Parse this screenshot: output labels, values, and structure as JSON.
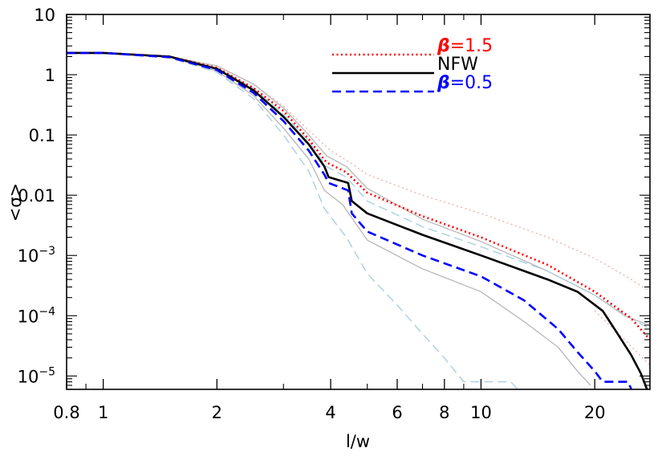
{
  "chart_data": {
    "type": "line",
    "xlabel": "l/w",
    "ylabel": "<σ>",
    "x_scale": "log",
    "y_scale": "log",
    "xlim": [
      0.8,
      28
    ],
    "ylim": [
      6e-06,
      10
    ],
    "grid": false,
    "legend_position": "top-right",
    "x_ticks": [
      {
        "value": 0.8,
        "label": "0.8"
      },
      {
        "value": 1,
        "label": "1"
      },
      {
        "value": 2,
        "label": "2"
      },
      {
        "value": 4,
        "label": "4"
      },
      {
        "value": 6,
        "label": "6"
      },
      {
        "value": 8,
        "label": "8"
      },
      {
        "value": 10,
        "label": "10"
      },
      {
        "value": 20,
        "label": "20"
      }
    ],
    "y_ticks": [
      {
        "value": 10,
        "label": "10",
        "sup": ""
      },
      {
        "value": 1,
        "label": "1",
        "sup": ""
      },
      {
        "value": 0.1,
        "label": "0.1",
        "sup": ""
      },
      {
        "value": 0.01,
        "label": "0.01",
        "sup": ""
      },
      {
        "value": 0.001,
        "label": "10",
        "sup": "−3"
      },
      {
        "value": 0.0001,
        "label": "10",
        "sup": "−4"
      },
      {
        "value": 1e-05,
        "label": "10",
        "sup": "−5"
      }
    ],
    "legend": [
      {
        "series": "beta15",
        "symbol": "β",
        "text": "=1.5"
      },
      {
        "series": "nfw",
        "symbol": "",
        "text": "NFW"
      },
      {
        "series": "beta05",
        "symbol": "β",
        "text": "=0.5"
      }
    ],
    "series": [
      {
        "id": "beta15",
        "color": "#ff0000",
        "style": "dotted",
        "width": 2.6,
        "role": "main",
        "x": [
          0.8,
          1.0,
          1.5,
          2.0,
          2.5,
          3.0,
          3.5,
          3.9,
          4.4,
          5.0,
          7.0,
          10.0,
          15.0,
          20.0,
          25.0,
          28.0
        ],
        "y": [
          2.3,
          2.3,
          2.0,
          1.3,
          0.6,
          0.25,
          0.085,
          0.035,
          0.024,
          0.011,
          0.0045,
          0.002,
          0.0007,
          0.00025,
          9e-05,
          4e-05
        ]
      },
      {
        "id": "nfw",
        "color": "#000000",
        "style": "solid",
        "width": 2.6,
        "role": "main",
        "x": [
          0.8,
          1.0,
          1.5,
          2.0,
          2.5,
          3.0,
          3.5,
          3.85,
          3.95,
          4.45,
          4.55,
          5.0,
          7.0,
          10.0,
          15.0,
          18.0,
          21.0,
          23.0,
          25.0,
          26.5,
          27.5
        ],
        "y": [
          2.3,
          2.3,
          2.0,
          1.25,
          0.55,
          0.2,
          0.07,
          0.03,
          0.02,
          0.016,
          0.008,
          0.005,
          0.0022,
          0.001,
          0.0004,
          0.00025,
          0.00012,
          5e-05,
          2.2e-05,
          1.1e-05,
          6e-06
        ]
      },
      {
        "id": "beta05",
        "color": "#0000ff",
        "style": "dashed",
        "width": 2.6,
        "role": "main",
        "x": [
          0.8,
          1.0,
          1.5,
          2.0,
          2.5,
          3.0,
          3.5,
          3.85,
          3.95,
          4.45,
          4.55,
          5.0,
          7.0,
          10.0,
          13.0,
          16.0,
          18.0,
          20.0,
          21.0,
          23.0,
          24.5,
          25.0
        ],
        "y": [
          2.3,
          2.3,
          1.95,
          1.2,
          0.5,
          0.17,
          0.055,
          0.022,
          0.016,
          0.012,
          0.005,
          0.0025,
          0.001,
          0.00045,
          0.00018,
          6e-05,
          2.5e-05,
          1.2e-05,
          8e-06,
          8e-06,
          8e-06,
          6e-06
        ]
      },
      {
        "id": "beta15_envelope",
        "color": "#f4b0b0",
        "style": "dotted",
        "width": 1.4,
        "role": "envelope",
        "x": [
          0.8,
          1.0,
          1.5,
          2.0,
          2.5,
          3.0,
          3.5,
          4.0,
          4.5,
          5.0,
          7.0,
          10.0,
          15.0,
          20.0,
          25.0,
          28.0
        ],
        "y": [
          2.3,
          2.3,
          2.0,
          1.4,
          0.7,
          0.3,
          0.12,
          0.055,
          0.035,
          0.022,
          0.01,
          0.005,
          0.002,
          0.0009,
          0.0004,
          0.00025
        ]
      },
      {
        "id": "beta15_envelope_low",
        "color": "#f4b0b0",
        "style": "dotted",
        "width": 1.4,
        "role": "envelope",
        "x": [
          20.0,
          24.0,
          28.0
        ],
        "y": [
          0.00012,
          4e-05,
          1.5e-05
        ]
      },
      {
        "id": "nfw_upper",
        "color": "#bbbbbb",
        "style": "solid",
        "width": 1.4,
        "role": "envelope",
        "x": [
          0.8,
          1.0,
          1.5,
          2.0,
          2.5,
          3.0,
          3.5,
          3.9,
          4.4,
          5.0,
          7.0,
          10.0,
          15.0,
          20.0,
          24.0,
          27.0,
          28.0
        ],
        "y": [
          2.3,
          2.3,
          2.0,
          1.4,
          0.7,
          0.28,
          0.1,
          0.045,
          0.03,
          0.013,
          0.004,
          0.0017,
          0.00055,
          0.00022,
          0.0001,
          7.5e-05,
          8e-05
        ]
      },
      {
        "id": "nfw_lower",
        "color": "#bbbbbb",
        "style": "solid",
        "width": 1.4,
        "role": "envelope",
        "x": [
          0.8,
          1.0,
          1.5,
          2.0,
          2.5,
          3.0,
          3.5,
          3.85,
          4.3,
          5.0,
          7.0,
          10.0,
          13.0,
          16.0,
          18.0,
          19.5
        ],
        "y": [
          2.3,
          2.3,
          1.95,
          1.15,
          0.45,
          0.13,
          0.04,
          0.012,
          0.007,
          0.0018,
          0.0006,
          0.00025,
          8e-05,
          3e-05,
          1.2e-05,
          7e-06
        ]
      },
      {
        "id": "beta05_upper",
        "color": "#a8d0e0",
        "style": "dashed",
        "width": 1.4,
        "role": "envelope",
        "x": [
          0.8,
          1.0,
          1.5,
          2.0,
          2.5,
          3.0,
          3.5,
          3.9,
          4.4,
          5.0,
          7.0,
          10.0,
          15.0,
          20.0,
          25.0,
          28.0
        ],
        "y": [
          2.3,
          2.3,
          2.0,
          1.3,
          0.6,
          0.22,
          0.08,
          0.03,
          0.02,
          0.008,
          0.003,
          0.0014,
          0.00055,
          0.00022,
          9e-05,
          6e-05
        ]
      },
      {
        "id": "beta05_lower",
        "color": "#a8d0e0",
        "style": "dashed",
        "width": 1.4,
        "role": "envelope",
        "x": [
          0.8,
          1.0,
          1.5,
          2.0,
          2.5,
          3.0,
          3.5,
          3.85,
          4.4,
          5.0,
          6.0,
          7.0,
          8.0,
          9.0,
          9.8,
          10.0,
          11.0,
          12.0,
          12.5
        ],
        "y": [
          2.3,
          2.3,
          1.9,
          1.1,
          0.4,
          0.1,
          0.025,
          0.006,
          0.002,
          0.0005,
          0.00015,
          5e-05,
          2e-05,
          8e-06,
          8e-06,
          8e-06,
          8e-06,
          8e-06,
          6e-06
        ]
      }
    ]
  }
}
